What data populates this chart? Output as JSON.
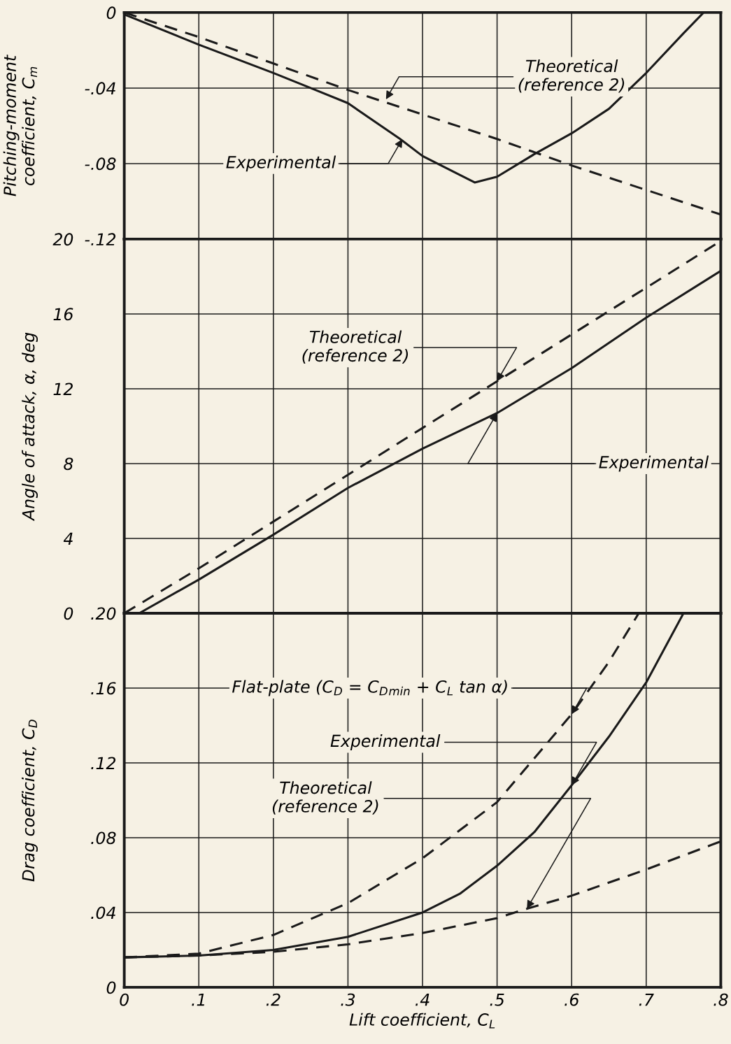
{
  "chart_data": [
    {
      "type": "line",
      "ylabel": "Pitching-moment\ncoefficient, C$_{m}$",
      "xlim": [
        0,
        0.8
      ],
      "ylim": [
        -0.12,
        0
      ],
      "xticks": [
        0.1,
        0.2,
        0.3,
        0.4,
        0.5,
        0.6,
        0.7
      ],
      "yticks": [
        {
          "value": -0.12,
          "label": "-.12"
        },
        {
          "value": -0.08,
          "label": "-.08"
        },
        {
          "value": -0.04,
          "label": "-.04"
        },
        0
      ],
      "grid": true,
      "tick_labels": "y",
      "series": [
        {
          "color": "#1a1a1a",
          "line_style": "solid",
          "x": [
            0,
            0.1,
            0.2,
            0.25,
            0.3,
            0.37,
            0.4,
            0.45,
            0.47,
            0.5,
            0.55,
            0.6,
            0.65,
            0.7,
            0.75,
            0.777
          ],
          "values": [
            -0.001,
            -0.017,
            -0.032,
            -0.04,
            -0.048,
            -0.067,
            -0.076,
            -0.086,
            -0.09,
            -0.087,
            -0.075,
            -0.064,
            -0.051,
            -0.032,
            -0.011,
            0
          ]
        },
        {
          "color": "#1a1a1a",
          "line_style": "dashed",
          "x": [
            0,
            0.1,
            0.2,
            0.3,
            0.4,
            0.5,
            0.6,
            0.7,
            0.8
          ],
          "values": [
            0,
            -0.013,
            -0.027,
            -0.041,
            -0.054,
            -0.067,
            -0.081,
            -0.094,
            -0.107
          ]
        }
      ],
      "annotations": [
        {
          "text": "Theoretical\n(reference 2)",
          "x": 0.351,
          "y": -0.046
        },
        {
          "text": "Experimental",
          "x": 0.373,
          "y": -0.067
        }
      ]
    },
    {
      "type": "line",
      "ylabel": "Angle of attack, α, deg",
      "xlim": [
        0,
        0.8
      ],
      "ylim": [
        0,
        20
      ],
      "xticks": [
        0.1,
        0.2,
        0.3,
        0.4,
        0.5,
        0.6,
        0.7
      ],
      "yticks": [
        0,
        4,
        8,
        12,
        16,
        20
      ],
      "grid": true,
      "tick_labels": "y",
      "series": [
        {
          "color": "#1a1a1a",
          "line_style": "solid",
          "x": [
            0.02,
            0.1,
            0.2,
            0.3,
            0.4,
            0.5,
            0.6,
            0.7,
            0.8
          ],
          "values": [
            0,
            1.8,
            4.2,
            6.7,
            8.8,
            10.7,
            13.1,
            15.8,
            18.3
          ]
        },
        {
          "color": "#1a1a1a",
          "line_style": "dashed",
          "x": [
            0,
            0.1,
            0.2,
            0.3,
            0.4,
            0.5,
            0.6,
            0.7,
            0.8
          ],
          "values": [
            0,
            2.4,
            4.9,
            7.4,
            9.9,
            12.4,
            14.9,
            17.4,
            19.9
          ]
        }
      ],
      "annotations": [
        {
          "text": "Theoretical\n(reference 2)",
          "x": 0.5,
          "y": 12.4
        },
        {
          "text": "Experimental",
          "x": 0.5,
          "y": 10.7
        }
      ]
    },
    {
      "type": "line",
      "xlabel": "Lift coefficient, C$_{L}$",
      "ylabel": "Drag coefficient, C$_{D}$",
      "xlim": [
        0,
        0.8
      ],
      "ylim": [
        0,
        0.2
      ],
      "xticks": [
        0,
        {
          "value": 0.1,
          "label": ".1"
        },
        {
          "value": 0.2,
          "label": ".2"
        },
        {
          "value": 0.3,
          "label": ".3"
        },
        {
          "value": 0.4,
          "label": ".4"
        },
        {
          "value": 0.5,
          "label": ".5"
        },
        {
          "value": 0.6,
          "label": ".6"
        },
        {
          "value": 0.7,
          "label": ".7"
        },
        {
          "value": 0.8,
          "label": ".8"
        }
      ],
      "yticks": [
        0,
        {
          "value": 0.04,
          "label": ".04"
        },
        {
          "value": 0.08,
          "label": ".08"
        },
        {
          "value": 0.12,
          "label": ".12"
        },
        {
          "value": 0.16,
          "label": ".16"
        },
        {
          "value": 0.2,
          "label": ".20"
        }
      ],
      "grid": true,
      "series": [
        {
          "color": "#1a1a1a",
          "line_style": "solid",
          "x": [
            0,
            0.1,
            0.2,
            0.3,
            0.4,
            0.45,
            0.5,
            0.55,
            0.6,
            0.65,
            0.7,
            0.75
          ],
          "values": [
            0.016,
            0.017,
            0.02,
            0.027,
            0.04,
            0.05,
            0.065,
            0.083,
            0.108,
            0.134,
            0.163,
            0.2
          ]
        },
        {
          "color": "#1a1a1a",
          "line_style": "dashed",
          "x": [
            0,
            0.1,
            0.2,
            0.3,
            0.4,
            0.5,
            0.6,
            0.65,
            0.69
          ],
          "values": [
            0.016,
            0.018,
            0.028,
            0.045,
            0.069,
            0.099,
            0.146,
            0.174,
            0.2
          ]
        },
        {
          "color": "#1a1a1a",
          "line_style": "dashed",
          "x": [
            0,
            0.1,
            0.2,
            0.3,
            0.4,
            0.5,
            0.54,
            0.6,
            0.7,
            0.8
          ],
          "values": [
            0.016,
            0.017,
            0.019,
            0.023,
            0.029,
            0.037,
            0.042,
            0.049,
            0.063,
            0.078
          ]
        }
      ],
      "annotations": [
        {
          "text": "Flat-plate (C$_{D}$ = C$_{D}$$_{min}$ + C$_{L}$ tan α)",
          "x": 0.6,
          "y": 0.146
        },
        {
          "text": "Experimental",
          "x": 0.6,
          "y": 0.108
        },
        {
          "text": "Theoretical\n(reference 2)",
          "x": 0.54,
          "y": 0.042
        }
      ]
    }
  ]
}
